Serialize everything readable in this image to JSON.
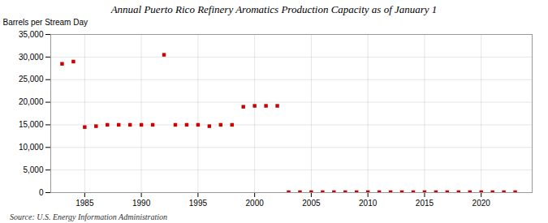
{
  "chart_data": {
    "type": "scatter",
    "title": "Annual Puerto Rico Refinery Aromatics Production Capacity as of January 1",
    "ylabel": "Barrels per Stream Day",
    "source": "Source: U.S. Energy Information Administration",
    "x": [
      1983,
      1984,
      1985,
      1986,
      1987,
      1988,
      1989,
      1990,
      1991,
      1992,
      1993,
      1994,
      1995,
      1996,
      1997,
      1998,
      1999,
      2000,
      2001,
      2002,
      2003,
      2004,
      2005,
      2006,
      2007,
      2008,
      2009,
      2010,
      2011,
      2012,
      2013,
      2014,
      2015,
      2016,
      2017,
      2018,
      2019,
      2020,
      2021,
      2022,
      2023
    ],
    "values": [
      28500,
      29000,
      14500,
      14700,
      15000,
      15000,
      15000,
      15000,
      15000,
      30500,
      15000,
      15000,
      15000,
      14700,
      15000,
      15000,
      19000,
      19200,
      19200,
      19200,
      100,
      100,
      100,
      100,
      100,
      100,
      100,
      100,
      100,
      100,
      100,
      100,
      100,
      100,
      100,
      100,
      100,
      100,
      100,
      100,
      100
    ],
    "color": "#cc0000",
    "marker": "square",
    "grid": true,
    "xlim": [
      1982,
      2024.5
    ],
    "xticks": [
      1985,
      1990,
      1995,
      2000,
      2005,
      2010,
      2015,
      2020
    ],
    "ylim": [
      0,
      35000
    ],
    "yticks": [
      0,
      {
        "value": 5000,
        "label": "5,000"
      },
      {
        "value": 10000,
        "label": "10,000"
      },
      {
        "value": 15000,
        "label": "15,000"
      },
      {
        "value": 20000,
        "label": "20,000"
      },
      {
        "value": 25000,
        "label": "25,000"
      },
      {
        "value": 30000,
        "label": "30,000"
      },
      {
        "value": 35000,
        "label": "35,000"
      }
    ]
  }
}
